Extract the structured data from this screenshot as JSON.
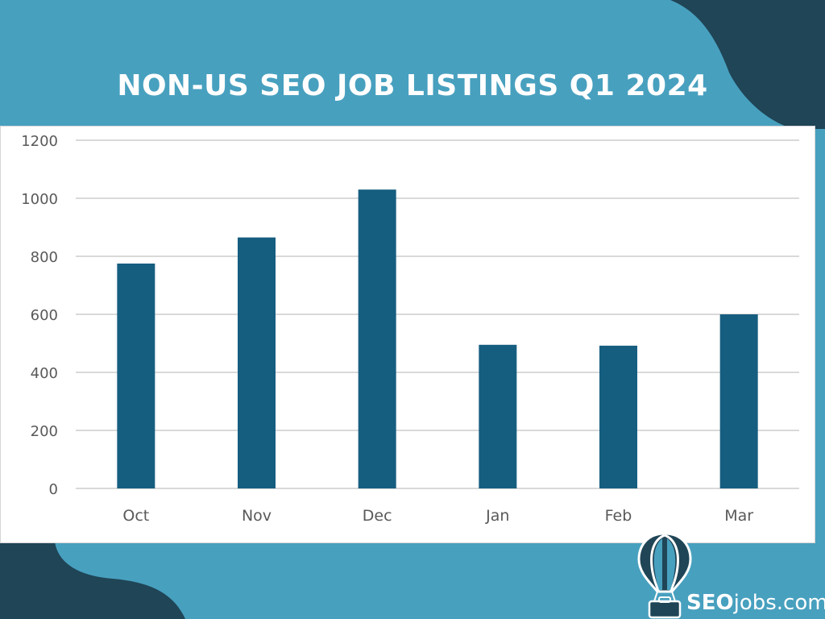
{
  "header": {
    "title": "NON-US SEO JOB LISTINGS Q1 2024"
  },
  "brand": {
    "name_bold": "SEO",
    "name_rest": "jobs.com"
  },
  "colors": {
    "background": "#48a0bf",
    "dark": "#1f4556",
    "bar": "#165e80",
    "grid": "#d9d9d9",
    "tick_text": "#595959"
  },
  "chart_data": {
    "type": "bar",
    "categories": [
      "Oct",
      "Nov",
      "Dec",
      "Jan",
      "Feb",
      "Mar"
    ],
    "values": [
      775,
      865,
      1030,
      495,
      492,
      600
    ],
    "title": "NON-US SEO JOB LISTINGS Q1 2024",
    "xlabel": "",
    "ylabel": "",
    "ylim": [
      0,
      1200
    ],
    "yticks": [
      0,
      200,
      400,
      600,
      800,
      1000,
      1200
    ],
    "grid": true,
    "legend": "none"
  }
}
